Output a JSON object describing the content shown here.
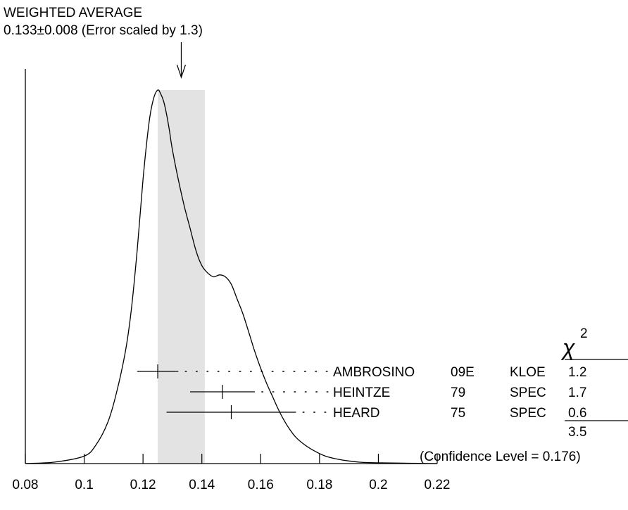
{
  "chart_data": {
    "type": "ideogram",
    "header": {
      "line1": "WEIGHTED AVERAGE",
      "line2": "0.133±0.008 (Error scaled by 1.3)"
    },
    "weighted_average": {
      "value": 0.133,
      "error": 0.008,
      "scale_factor": 1.3
    },
    "band": [
      0.125,
      0.141
    ],
    "xlim": [
      0.08,
      0.22
    ],
    "xticks": [
      0.08,
      0.1,
      0.12,
      0.14,
      0.16,
      0.18,
      0.2,
      0.22
    ],
    "xtick_labels": [
      "0.08",
      "0.1",
      "0.12",
      "0.14",
      "0.16",
      "0.18",
      "0.2",
      "0.22"
    ],
    "ideogram_curve": {
      "x": [
        0.08,
        0.09,
        0.1,
        0.104,
        0.108,
        0.111,
        0.114,
        0.116,
        0.118,
        0.12,
        0.122,
        0.1235,
        0.125,
        0.126,
        0.127,
        0.128,
        0.129,
        0.13,
        0.132,
        0.134,
        0.136,
        0.138,
        0.14,
        0.142,
        0.144,
        0.146,
        0.148,
        0.15,
        0.152,
        0.154,
        0.156,
        0.158,
        0.16,
        0.162,
        0.164,
        0.166,
        0.168,
        0.17,
        0.172,
        0.175,
        0.178,
        0.182,
        0.186,
        0.19,
        0.195,
        0.2,
        0.21,
        0.22
      ],
      "y": [
        0.0,
        0.004,
        0.02,
        0.05,
        0.11,
        0.19,
        0.3,
        0.41,
        0.57,
        0.76,
        0.91,
        0.975,
        1.0,
        0.99,
        0.97,
        0.935,
        0.89,
        0.84,
        0.76,
        0.69,
        0.63,
        0.57,
        0.53,
        0.51,
        0.5,
        0.505,
        0.5,
        0.48,
        0.44,
        0.4,
        0.35,
        0.3,
        0.255,
        0.215,
        0.18,
        0.145,
        0.115,
        0.09,
        0.07,
        0.05,
        0.035,
        0.02,
        0.012,
        0.007,
        0.003,
        0.002,
        0.001,
        0.0
      ]
    },
    "measurements": [
      {
        "author": "AMBROSINO",
        "year": "09E",
        "tech": "KLOE",
        "value": 0.125,
        "error": 0.007,
        "chi2": "1.2"
      },
      {
        "author": "HEINTZE",
        "year": "79",
        "tech": "SPEC",
        "value": 0.147,
        "error": 0.011,
        "chi2": "1.7"
      },
      {
        "author": "HEARD",
        "year": "75",
        "tech": "SPEC",
        "value": 0.15,
        "error": 0.022,
        "chi2": "0.6"
      }
    ],
    "chi2_header": {
      "base": "χ",
      "exponent": "2"
    },
    "chi2_total": "3.5",
    "confidence": "(Confidence Level = 0.176)"
  }
}
